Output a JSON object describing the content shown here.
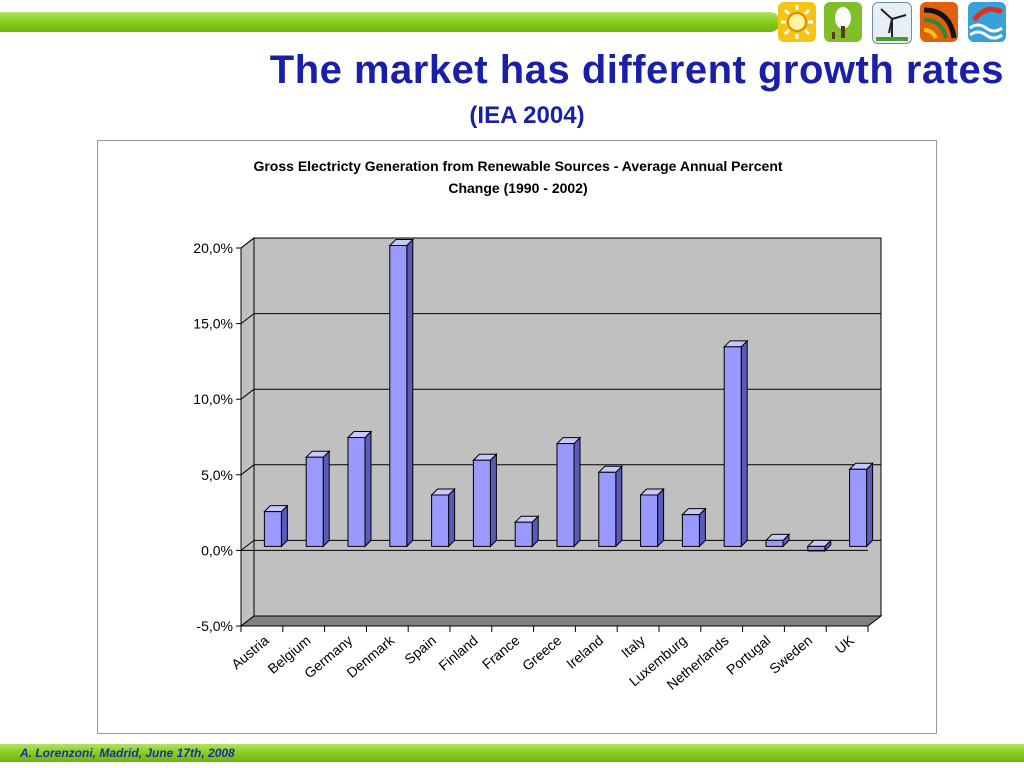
{
  "slide": {
    "title": "The market has different growth rates",
    "subtitle": "(IEA 2004)",
    "footer": "A. Lorenzoni, Madrid, June 17th, 2008",
    "logos": [
      "sun-logo",
      "tree-logo",
      "wind-turbine-logo",
      "biomass-logo",
      "wave-logo"
    ]
  },
  "chart_data": {
    "type": "bar",
    "title_line1": "Gross Electricty Generation from Renewable Sources - Average Annual Percent",
    "title_line2": "Change (1990 - 2002)",
    "categories": [
      "Austria",
      "Belgium",
      "Germany",
      "Denmark",
      "Spain",
      "Finland",
      "France",
      "Greece",
      "Ireland",
      "Italy",
      "Luxemburg",
      "Netherlands",
      "Portugal",
      "Sweden",
      "UK"
    ],
    "values": [
      2.3,
      5.9,
      7.2,
      19.9,
      3.4,
      5.7,
      1.6,
      6.8,
      4.9,
      3.4,
      2.1,
      13.2,
      0.4,
      -0.3,
      5.1
    ],
    "ylim": [
      -5,
      20
    ],
    "yticks": [
      20,
      15,
      10,
      5,
      0,
      -5
    ],
    "ytick_labels": [
      "20,0%",
      "15,0%",
      "10,0%",
      "5,0%",
      "0,0%",
      "-5,0%"
    ],
    "grid": true,
    "bar_color": "#9999ff",
    "wall_color": "#c0c0c0",
    "floor_color": "#808080"
  }
}
